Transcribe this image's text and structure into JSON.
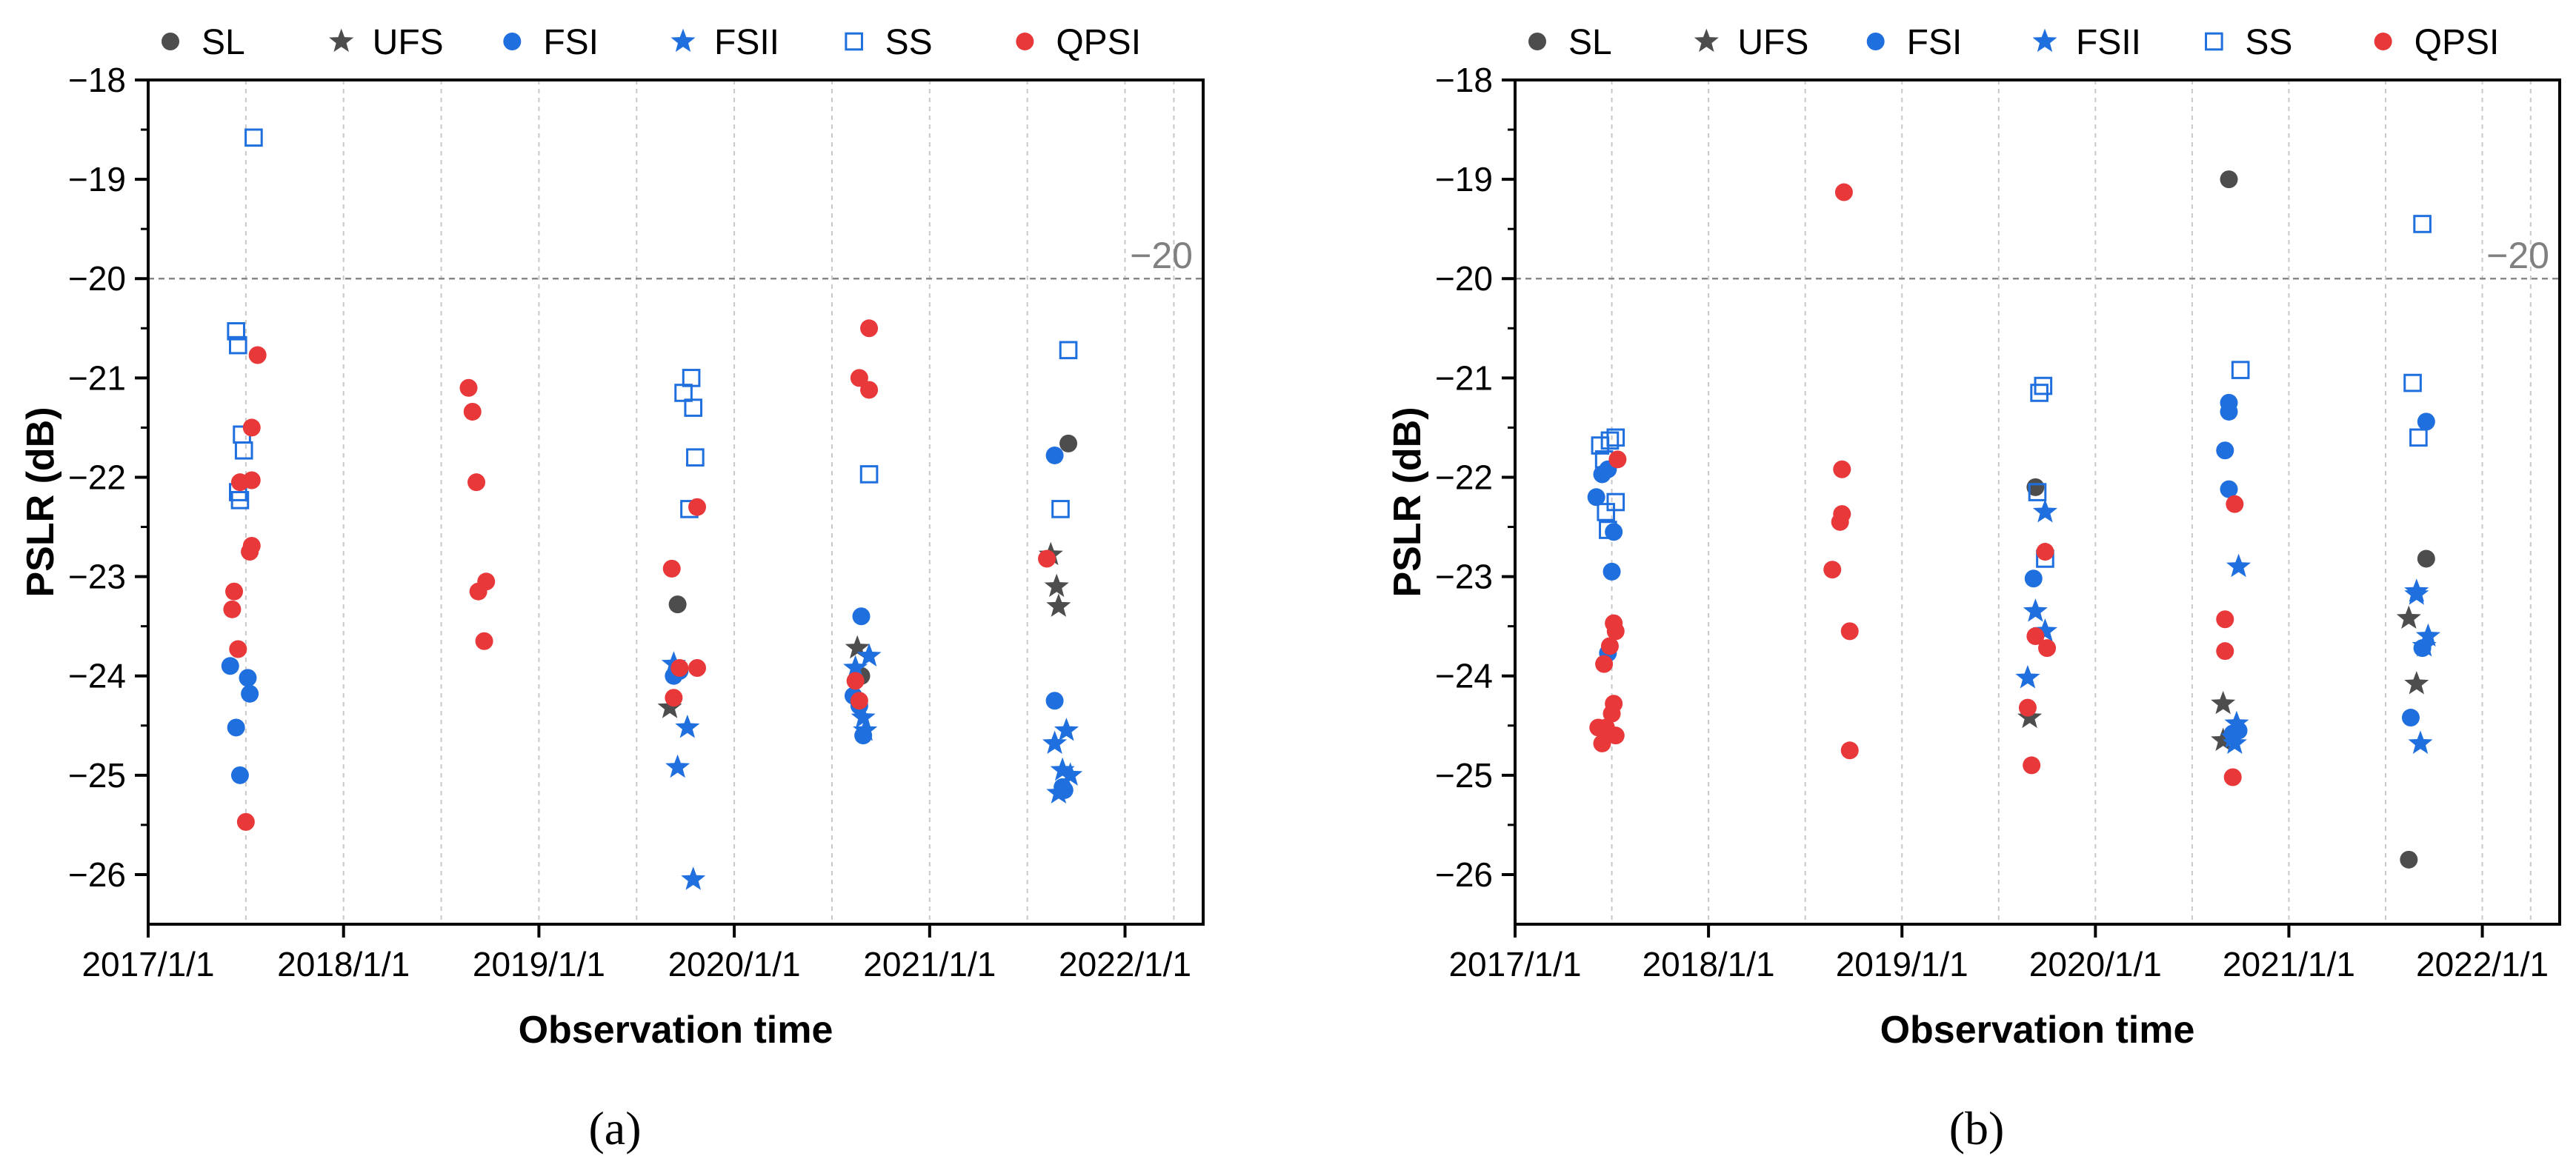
{
  "figure": {
    "panel_labels": [
      "(a)",
      "(b)"
    ],
    "reference_label": "−20"
  },
  "chart_data": [
    {
      "type": "scatter",
      "panel": "(a)",
      "xlabel": "Observation time",
      "ylabel": "PSLR (dB)",
      "xlim": [
        2017.0,
        2022.4
      ],
      "ylim": [
        -26.5,
        -18
      ],
      "x_ticks": [
        2017,
        2018,
        2019,
        2020,
        2021,
        2022
      ],
      "x_tick_labels": [
        "2017/1/1",
        "2018/1/1",
        "2019/1/1",
        "2020/1/1",
        "2021/1/1",
        "2022/1/1"
      ],
      "y_ticks": [
        -26,
        -25,
        -24,
        -23,
        -22,
        -21,
        -20,
        -19,
        -18
      ],
      "y_tick_labels": [
        "−26",
        "−25",
        "−24",
        "−23",
        "−22",
        "−21",
        "−20",
        "−19",
        "−18"
      ],
      "minor_x_gridlines": [
        2017.5,
        2018.5,
        2019.5,
        2020.5,
        2021.5,
        2022.25
      ],
      "reference_line": -20,
      "reference_label": "−20",
      "legend_position": "top",
      "series": [
        {
          "name": "SL",
          "marker": "circle",
          "color": "#4d4d4d",
          "points": [
            [
              2019.71,
              -23.28
            ],
            [
              2020.65,
              -24.0
            ],
            [
              2021.71,
              -21.66
            ]
          ]
        },
        {
          "name": "UFS",
          "marker": "star",
          "color": "#4d4d4d",
          "points": [
            [
              2019.67,
              -24.32
            ],
            [
              2020.63,
              -23.72
            ],
            [
              2021.62,
              -22.78
            ],
            [
              2021.65,
              -23.1
            ],
            [
              2021.66,
              -23.3
            ]
          ]
        },
        {
          "name": "FSI",
          "marker": "circle",
          "color": "#1f6fde",
          "points": [
            [
              2017.42,
              -23.9
            ],
            [
              2017.45,
              -24.52
            ],
            [
              2017.47,
              -25.0
            ],
            [
              2017.51,
              -24.02
            ],
            [
              2017.52,
              -24.18
            ],
            [
              2019.69,
              -24.0
            ],
            [
              2019.72,
              -23.95
            ],
            [
              2020.61,
              -24.2
            ],
            [
              2020.64,
              -24.3
            ],
            [
              2020.66,
              -24.6
            ],
            [
              2020.65,
              -23.4
            ],
            [
              2021.64,
              -21.78
            ],
            [
              2021.64,
              -24.25
            ],
            [
              2021.68,
              -25.12
            ],
            [
              2021.69,
              -25.15
            ]
          ]
        },
        {
          "name": "FSII",
          "marker": "star",
          "color": "#1f6fde",
          "points": [
            [
              2019.69,
              -23.88
            ],
            [
              2019.71,
              -24.92
            ],
            [
              2019.76,
              -24.52
            ],
            [
              2019.79,
              -26.05
            ],
            [
              2020.62,
              -23.92
            ],
            [
              2020.66,
              -24.42
            ],
            [
              2020.69,
              -23.8
            ],
            [
              2020.67,
              -24.55
            ],
            [
              2021.64,
              -24.68
            ],
            [
              2021.66,
              -25.18
            ],
            [
              2021.68,
              -24.95
            ],
            [
              2021.7,
              -24.55
            ],
            [
              2021.72,
              -25.0
            ]
          ]
        },
        {
          "name": "SS",
          "marker": "open-square",
          "color": "#1f6fde",
          "points": [
            [
              2017.45,
              -20.53
            ],
            [
              2017.46,
              -20.67
            ],
            [
              2017.48,
              -21.57
            ],
            [
              2017.49,
              -21.73
            ],
            [
              2017.46,
              -22.15
            ],
            [
              2017.47,
              -22.23
            ],
            [
              2017.54,
              -18.58
            ],
            [
              2019.74,
              -21.15
            ],
            [
              2019.78,
              -21.0
            ],
            [
              2019.79,
              -21.3
            ],
            [
              2019.8,
              -21.8
            ],
            [
              2019.77,
              -22.32
            ],
            [
              2020.69,
              -21.97
            ],
            [
              2021.67,
              -22.32
            ],
            [
              2021.71,
              -20.72
            ]
          ]
        },
        {
          "name": "QPSI",
          "marker": "circle",
          "color": "#e8383a",
          "points": [
            [
              2017.44,
              -23.15
            ],
            [
              2017.43,
              -23.33
            ],
            [
              2017.46,
              -23.73
            ],
            [
              2017.47,
              -22.05
            ],
            [
              2017.5,
              -25.47
            ],
            [
              2017.53,
              -22.03
            ],
            [
              2017.53,
              -21.5
            ],
            [
              2017.52,
              -22.75
            ],
            [
              2017.53,
              -22.69
            ],
            [
              2017.56,
              -20.77
            ],
            [
              2018.64,
              -21.1
            ],
            [
              2018.66,
              -21.34
            ],
            [
              2018.68,
              -22.05
            ],
            [
              2018.69,
              -23.15
            ],
            [
              2018.72,
              -23.65
            ],
            [
              2018.73,
              -23.05
            ],
            [
              2019.68,
              -22.92
            ],
            [
              2019.69,
              -24.22
            ],
            [
              2019.72,
              -23.92
            ],
            [
              2019.81,
              -23.92
            ],
            [
              2019.81,
              -22.3
            ],
            [
              2020.62,
              -24.05
            ],
            [
              2020.64,
              -24.25
            ],
            [
              2020.64,
              -21.0
            ],
            [
              2020.69,
              -21.12
            ],
            [
              2020.69,
              -20.5
            ],
            [
              2021.6,
              -22.82
            ]
          ]
        }
      ]
    },
    {
      "type": "scatter",
      "panel": "(b)",
      "xlabel": "Observation time",
      "ylabel": "PSLR (dB)",
      "xlim": [
        2017.0,
        2022.4
      ],
      "ylim": [
        -26.5,
        -18
      ],
      "x_ticks": [
        2017,
        2018,
        2019,
        2020,
        2021,
        2022
      ],
      "x_tick_labels": [
        "2017/1/1",
        "2018/1/1",
        "2019/1/1",
        "2020/1/1",
        "2021/1/1",
        "2022/1/1"
      ],
      "y_ticks": [
        -26,
        -25,
        -24,
        -23,
        -22,
        -21,
        -20,
        -19,
        -18
      ],
      "y_tick_labels": [
        "−26",
        "−25",
        "−24",
        "−23",
        "−22",
        "−21",
        "−20",
        "−19",
        "−18"
      ],
      "minor_x_gridlines": [
        2017.5,
        2018.5,
        2019.5,
        2020.5,
        2021.5,
        2022.25
      ],
      "reference_line": -20,
      "reference_label": "−20",
      "legend_position": "top",
      "series": [
        {
          "name": "SL",
          "marker": "circle",
          "color": "#4d4d4d",
          "points": [
            [
              2019.69,
              -22.1
            ],
            [
              2020.69,
              -19.0
            ],
            [
              2021.62,
              -25.85
            ],
            [
              2021.71,
              -22.82
            ]
          ]
        },
        {
          "name": "UFS",
          "marker": "star",
          "color": "#4d4d4d",
          "points": [
            [
              2019.66,
              -24.42
            ],
            [
              2020.66,
              -24.28
            ],
            [
              2020.66,
              -24.65
            ],
            [
              2021.62,
              -23.42
            ],
            [
              2021.66,
              -24.08
            ]
          ]
        },
        {
          "name": "FSI",
          "marker": "circle",
          "color": "#1f6fde",
          "points": [
            [
              2017.42,
              -22.2
            ],
            [
              2017.45,
              -21.97
            ],
            [
              2017.48,
              -21.92
            ],
            [
              2017.48,
              -23.77
            ],
            [
              2017.5,
              -22.95
            ],
            [
              2017.51,
              -22.55
            ],
            [
              2019.68,
              -23.02
            ],
            [
              2020.67,
              -21.73
            ],
            [
              2020.69,
              -21.25
            ],
            [
              2020.69,
              -21.34
            ],
            [
              2020.69,
              -22.12
            ],
            [
              2020.71,
              -24.58
            ],
            [
              2020.74,
              -24.55
            ],
            [
              2021.63,
              -24.42
            ],
            [
              2021.71,
              -21.44
            ],
            [
              2021.69,
              -23.72
            ]
          ]
        },
        {
          "name": "FSII",
          "marker": "star",
          "color": "#1f6fde",
          "points": [
            [
              2019.65,
              -24.02
            ],
            [
              2019.69,
              -23.35
            ],
            [
              2019.74,
              -22.35
            ],
            [
              2019.74,
              -23.55
            ],
            [
              2020.71,
              -24.62
            ],
            [
              2020.73,
              -24.48
            ],
            [
              2020.74,
              -22.9
            ],
            [
              2020.72,
              -24.68
            ],
            [
              2021.66,
              -23.18
            ],
            [
              2021.66,
              -23.15
            ],
            [
              2021.68,
              -24.68
            ],
            [
              2021.72,
              -23.6
            ],
            [
              2021.7,
              -23.7
            ]
          ]
        },
        {
          "name": "SS",
          "marker": "open-square",
          "color": "#1f6fde",
          "points": [
            [
              2017.44,
              -21.68
            ],
            [
              2017.46,
              -21.82
            ],
            [
              2017.47,
              -22.35
            ],
            [
              2017.48,
              -22.53
            ],
            [
              2017.49,
              -21.63
            ],
            [
              2017.52,
              -21.6
            ],
            [
              2017.52,
              -22.25
            ],
            [
              2019.7,
              -22.15
            ],
            [
              2019.71,
              -21.15
            ],
            [
              2019.73,
              -21.08
            ],
            [
              2019.74,
              -22.82
            ],
            [
              2020.75,
              -20.92
            ],
            [
              2021.64,
              -21.05
            ],
            [
              2021.67,
              -21.6
            ],
            [
              2021.69,
              -19.45
            ]
          ]
        },
        {
          "name": "QPSI",
          "marker": "circle",
          "color": "#e8383a",
          "points": [
            [
              2017.43,
              -24.52
            ],
            [
              2017.45,
              -24.68
            ],
            [
              2017.46,
              -23.88
            ],
            [
              2017.47,
              -24.52
            ],
            [
              2017.49,
              -23.7
            ],
            [
              2017.51,
              -23.47
            ],
            [
              2017.52,
              -23.55
            ],
            [
              2017.53,
              -21.82
            ],
            [
              2017.51,
              -24.28
            ],
            [
              2017.5,
              -24.38
            ],
            [
              2017.52,
              -24.6
            ],
            [
              2018.64,
              -22.93
            ],
            [
              2018.68,
              -22.45
            ],
            [
              2018.69,
              -21.92
            ],
            [
              2018.69,
              -22.37
            ],
            [
              2018.73,
              -23.55
            ],
            [
              2018.7,
              -19.13
            ],
            [
              2018.73,
              -24.75
            ],
            [
              2019.65,
              -24.32
            ],
            [
              2019.67,
              -24.9
            ],
            [
              2019.69,
              -23.6
            ],
            [
              2019.74,
              -22.75
            ],
            [
              2019.75,
              -23.72
            ],
            [
              2020.67,
              -23.43
            ],
            [
              2020.67,
              -23.75
            ],
            [
              2020.72,
              -22.27
            ],
            [
              2020.71,
              -25.02
            ]
          ]
        }
      ]
    }
  ]
}
